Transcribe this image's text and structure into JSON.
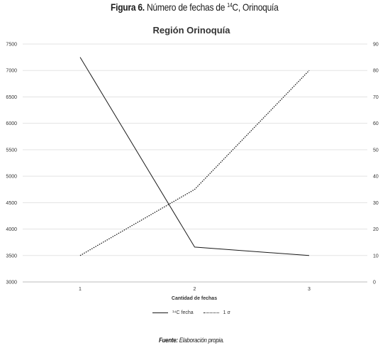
{
  "figure": {
    "label": "Figura 6.",
    "title_pre": "Número de fechas de ",
    "title_sup": "14",
    "title_post": "C, Orinoquía"
  },
  "source": {
    "label": "Fuente:",
    "text": "Elaboración propia."
  },
  "chart_data": {
    "type": "line",
    "title": "Región Orinoquía",
    "xlabel": "Cantidad de fechas",
    "categories": [
      "1",
      "2",
      "3"
    ],
    "y_left": {
      "min": 3000,
      "max": 7500,
      "step": 500,
      "ticks": [
        "3000",
        "3500",
        "4000",
        "4500",
        "5000",
        "5500",
        "6000",
        "6500",
        "7000",
        "7500"
      ]
    },
    "y_right": {
      "min": 0,
      "max": 90,
      "step": 10,
      "ticks": [
        "0",
        "10",
        "20",
        "30",
        "40",
        "50",
        "60",
        "70",
        "80",
        "90"
      ]
    },
    "grid": true,
    "legend_position": "bottom",
    "series": [
      {
        "name": "¹⁴C fecha",
        "axis": "left",
        "style": "solid",
        "color": "#1a1a1a",
        "values": [
          7250,
          3660,
          3500
        ]
      },
      {
        "name": "1 σ",
        "axis": "right",
        "style": "dotted",
        "color": "#1a1a1a",
        "values": [
          10,
          35,
          80
        ]
      }
    ]
  }
}
